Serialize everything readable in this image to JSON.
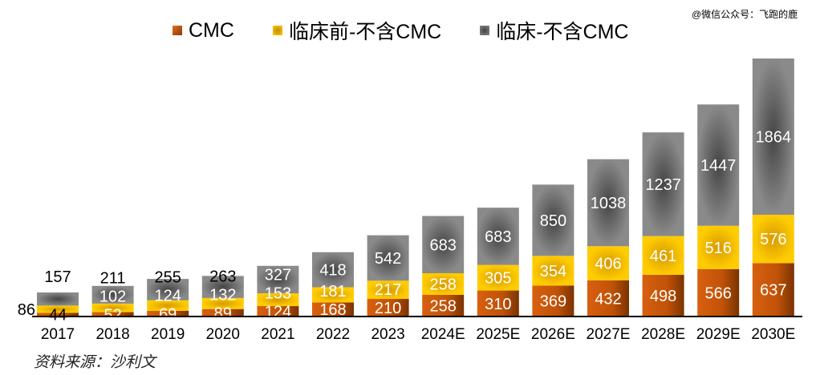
{
  "watermark": "@微信公众号：飞跑的鹿",
  "source": "资料来源：沙利文",
  "chart_data": {
    "type": "bar",
    "stacked": true,
    "categories": [
      "2017",
      "2018",
      "2019",
      "2020",
      "2021",
      "2022",
      "2023",
      "2024E",
      "2025E",
      "2026E",
      "2027E",
      "2028E",
      "2029E",
      "2030E"
    ],
    "series": [
      {
        "name": "CMC",
        "color": "#c55a11",
        "values": [
          44,
          52,
          69,
          89,
          124,
          168,
          210,
          258,
          310,
          369,
          432,
          498,
          566,
          637
        ]
      },
      {
        "name": "临床前-不含CMC",
        "color": "#f5b800",
        "values": [
          86,
          102,
          124,
          132,
          153,
          181,
          217,
          258,
          305,
          354,
          406,
          461,
          516,
          576
        ]
      },
      {
        "name": "临床-不含CMC",
        "color": "#6e6e6e",
        "values": [
          157,
          211,
          255,
          263,
          327,
          418,
          542,
          683,
          683,
          850,
          1038,
          1237,
          1447,
          1864
        ]
      }
    ],
    "legend": "top",
    "grid": false
  }
}
